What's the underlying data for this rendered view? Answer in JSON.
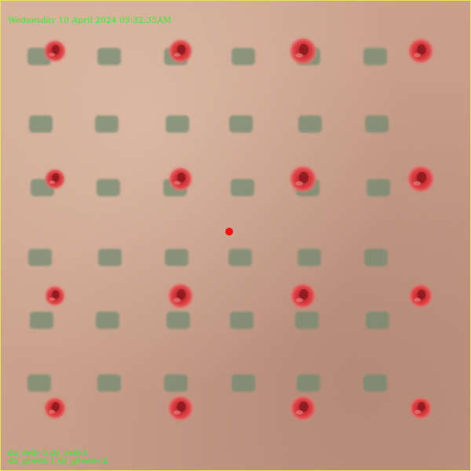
{
  "overlay": {
    "timestamp": "Wednesday 10 April 2024 09:32:35AM",
    "offset_red": "dx_red:-5,dy_red:3",
    "offset_green": "dx_green:1,dy_green:-2"
  },
  "colors": {
    "overlay_text": "#27f527",
    "background": "#c9a08b",
    "green_marker": "#6f8a6f",
    "red_marker": "#d8383c",
    "center_marker": "#ff1010",
    "frame_border": "#e7e35a"
  },
  "scene": {
    "green_marker_grid": "6 columns x 6 rows",
    "red_marker_grid": "4 columns x 4 rows",
    "center_marker_count": 1
  }
}
